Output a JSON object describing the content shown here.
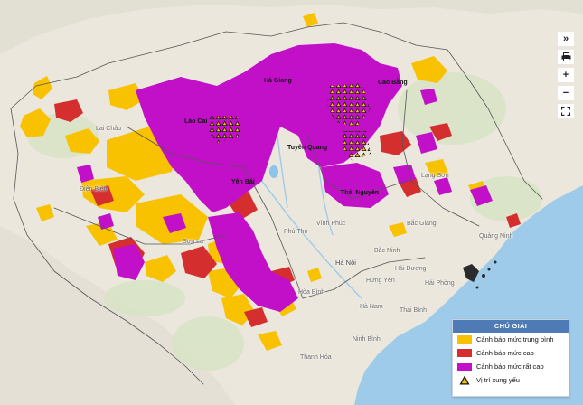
{
  "map": {
    "places": {
      "ha_giang": "Hà Giang",
      "cao_bang": "Cao Bằng",
      "lao_cai": "Lào Cai",
      "lai_chau": "Lai Châu",
      "tuyen_quang": "Tuyên Quang",
      "dien_bien": "Điện Biên",
      "yen_bai": "Yên Bái",
      "thai_nguyen": "Thái Nguyên",
      "lang_son": "Lạng Sơn",
      "bac_giang": "Bắc Giang",
      "vinh_phuc": "Vĩnh Phúc",
      "phu_tho": "Phú Thọ",
      "son_la": "Sơn La",
      "bac_ninh": "Bắc Ninh",
      "ha_noi": "Hà Nội",
      "hai_duong": "Hải Dương",
      "quang_ninh": "Quảng Ninh",
      "hung_yen": "Hưng Yên",
      "hai_phong": "Hải Phòng",
      "hoa_binh": "Hòa Bình",
      "ha_nam": "Hà Nam",
      "thai_binh": "Thái Bình",
      "ninh_binh": "Ninh Bình",
      "thanh_hoa": "Thanh Hóa"
    }
  },
  "controls": {
    "expand_label": "»",
    "zoom_in_label": "+",
    "zoom_out_label": "−",
    "print_icon": "printer-icon",
    "fullscreen_icon": "fullscreen-icon"
  },
  "legend": {
    "title": "CHÚ GIẢI",
    "items": [
      {
        "label": "Cảnh báo mức trung bình",
        "color": "#f8c200"
      },
      {
        "label": "Cảnh báo mức cao",
        "color": "#d42e2e"
      },
      {
        "label": "Cảnh báo mức rất cao",
        "color": "#c20fc8"
      },
      {
        "label": "Vị trí xung yếu",
        "icon": "warning-triangle-icon"
      }
    ]
  },
  "colors": {
    "land": "#ebe7dc",
    "sea": "#9fcbea",
    "medium": "#f8c200",
    "high": "#d42e2e",
    "very_high": "#c20fc8",
    "legend_header": "#4e7ab6"
  }
}
